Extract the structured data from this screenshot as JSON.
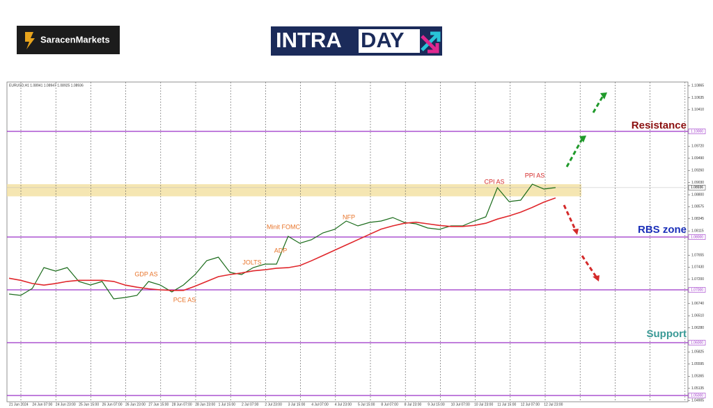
{
  "logos": {
    "saracen": "SaracenMarkets",
    "intraday": [
      "INTRA",
      "DAY"
    ]
  },
  "chart_data": {
    "type": "line",
    "title": "EURUSD,H1 1.08941 1.08947 1.08925 1.08936",
    "categories": [
      "21 Jun 2024",
      null,
      "24 Jun 07:00",
      null,
      "24 Jun 23:00",
      null,
      "25 Jun 15:00",
      null,
      "26 Jun 07:00",
      null,
      "26 Jun 23:00",
      null,
      "27 Jun 15:00",
      null,
      "28 Jun 07:00",
      null,
      "28 Jun 23:00",
      null,
      "1 Jul 15:00",
      null,
      "2 Jul 07:00",
      null,
      "2 Jul 23:00",
      null,
      "3 Jul 15:00",
      null,
      "4 Jul 07:00",
      null,
      "4 Jul 23:00",
      null,
      "5 Jul 15:00",
      null,
      "8 Jul 07:00",
      null,
      "8 Jul 23:00",
      null,
      "9 Jul 15:00",
      null,
      "10 Jul 07:00",
      null,
      "10 Jul 23:00",
      null,
      "11 Jul 15:00",
      null,
      "12 Jul 07:00",
      null,
      "12 Jul 23:00",
      null
    ],
    "series": [
      {
        "color": "#1a6b1a",
        "values": [
          1.06921,
          1.06895,
          1.07026,
          1.07421,
          1.07355,
          1.07421,
          1.07158,
          1.07092,
          1.07158,
          1.06829,
          1.06855,
          1.06895,
          1.07158,
          1.07092,
          1.06961,
          1.07092,
          1.07289,
          1.07553,
          1.07618,
          1.07329,
          1.07289,
          1.07421,
          1.07487,
          1.07487,
          1.08013,
          1.07882,
          1.07947,
          1.08079,
          1.08145,
          1.08303,
          1.08211,
          1.08276,
          1.08303,
          1.08368,
          1.08276,
          1.0825,
          1.08171,
          1.08145,
          1.08211,
          1.08211,
          1.08303,
          1.08382,
          1.08934,
          1.08671,
          1.08697,
          1.09,
          1.08908,
          1.08936
        ]
      },
      {
        "color": "#e0262b",
        "values": [
          1.0722,
          1.0718,
          1.0712,
          1.0709,
          1.0712,
          1.0716,
          1.0718,
          1.0718,
          1.0718,
          1.0716,
          1.0709,
          1.0705,
          1.0702,
          1.07,
          1.0699,
          1.0699,
          1.0707,
          1.0716,
          1.0725,
          1.0729,
          1.0732,
          1.0736,
          1.0738,
          1.0741,
          1.0742,
          1.0746,
          1.0755,
          1.0765,
          1.0775,
          1.0785,
          1.0795,
          1.0805,
          1.0815,
          1.0821,
          1.0826,
          1.0828,
          1.0825,
          1.0822,
          1.082,
          1.082,
          1.0822,
          1.0826,
          1.0834,
          1.084,
          1.0847,
          1.0856,
          1.0866,
          1.0874
        ]
      }
    ],
    "ylim": [
      1.04882,
      1.10934
    ],
    "yticks": [
      1.10865,
      1.10635,
      {
        "value": 1.1041,
        "label": "1.10410"
      },
      {
        "value": 1.0972,
        "label": "1.09720"
      },
      {
        "value": 1.0949,
        "label": "1.09490"
      },
      {
        "value": 1.0926,
        "label": "1.09260"
      },
      {
        "value": 1.0903,
        "label": "1.09030"
      },
      {
        "value": 1.088,
        "label": "1.08800"
      },
      1.08575,
      1.08345,
      1.08115,
      1.07655,
      {
        "value": 1.0743,
        "label": "1.07430"
      },
      {
        "value": 1.072,
        "label": "1.07200"
      },
      {
        "value": 1.0674,
        "label": "1.06740"
      },
      {
        "value": 1.0651,
        "label": "1.06510"
      },
      {
        "value": 1.0628,
        "label": "1.06280"
      },
      1.05825,
      1.05595,
      1.05365,
      1.05135,
      1.04905
    ],
    "levels": [
      {
        "value": 1.1,
        "label": "1.10000"
      },
      {
        "value": 1.08,
        "label": "1.08000"
      },
      {
        "value": 1.07,
        "label": "1.07000"
      },
      {
        "value": 1.06,
        "label": "1.06000"
      },
      {
        "value": 1.05,
        "label": "1.05000"
      }
    ],
    "level_color": "#9b30c8",
    "zone": [
      1.0877,
      1.09
    ],
    "zone_color": "#f3e2a4",
    "current_price": {
      "value": 1.08936,
      "label": "1.08936"
    },
    "annotations": [
      "GDP AS",
      "PCE AS",
      "JOLTS",
      "ADP",
      "Minit FOMC",
      "NFP",
      "CPI AS",
      "PPI AS"
    ],
    "zone_labels": [
      "Resistance",
      "RBS zone",
      "Support"
    ],
    "grid": true
  }
}
